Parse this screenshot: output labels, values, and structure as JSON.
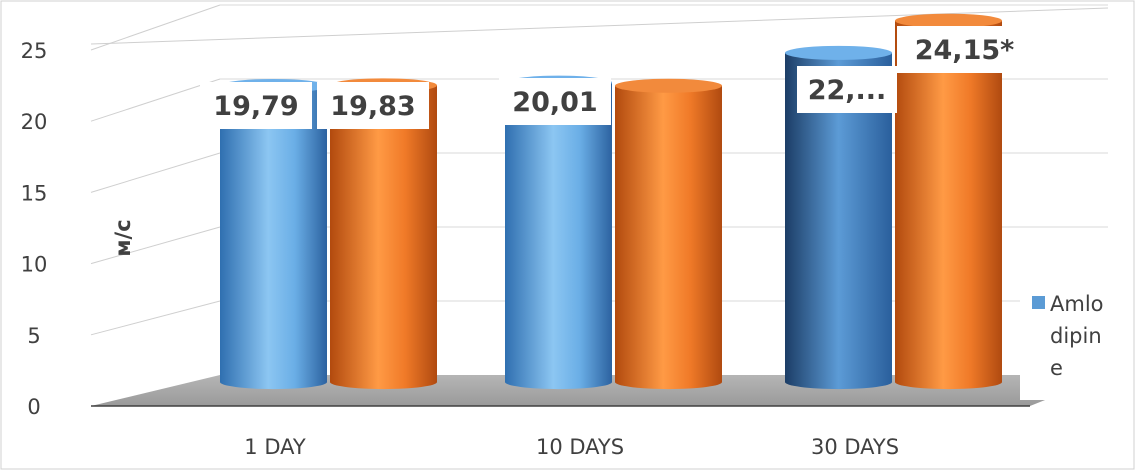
{
  "chart_data": {
    "type": "bar",
    "style": "3d-cylinder",
    "categories": [
      "1 DAY",
      "10 DAYS",
      "30 DAYS"
    ],
    "ylabel": "м/с",
    "ylim": [
      0,
      25
    ],
    "yticks": [
      "0",
      "5",
      "10",
      "15",
      "20",
      "25"
    ],
    "grid": true,
    "legend_position": "right",
    "series": [
      {
        "name": "Amlodipine",
        "legend_lines": [
          "Amlo",
          "dipin",
          "e"
        ],
        "color": "#5b9bd5",
        "values": [
          19.79,
          20.01,
          22
        ],
        "data_labels": [
          "19,79",
          "20,01",
          "22,..."
        ]
      },
      {
        "color": "#ed7d31",
        "values": [
          19.83,
          19.8,
          24.15
        ],
        "data_labels": [
          "19,83",
          "",
          "24,15*"
        ]
      }
    ]
  }
}
